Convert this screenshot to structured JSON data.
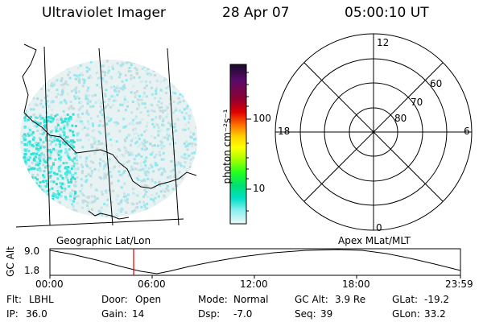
{
  "header": {
    "instrument": "Ultraviolet Imager",
    "date": "28 Apr 07",
    "time": "05:00:10 UT"
  },
  "colorbar": {
    "unit_label": "photon cm⁻²s⁻¹",
    "ticks": [
      "100",
      "10"
    ],
    "colors": [
      "#1a0a2a",
      "#3a0a5a",
      "#800080",
      "#a00000",
      "#e00000",
      "#ff6000",
      "#ffb000",
      "#ffff00",
      "#b0ff00",
      "#40ff00",
      "#00e060",
      "#00e0c0",
      "#90f0f0",
      "#e8f8f8"
    ]
  },
  "polar_plot": {
    "mlt_labels": {
      "top": "12",
      "left": "18",
      "right": "6",
      "bottom": "0"
    },
    "lat_labels": [
      "60",
      "70",
      "80"
    ]
  },
  "timeline": {
    "left_title": "Geographic Lat/Lon",
    "right_title": "Apex MLat/MLT",
    "axis_label": "GC Alt",
    "y_ticks": [
      "9.0",
      "1.8"
    ],
    "x_ticks": [
      "00:00",
      "06:00",
      "12:00",
      "18:00",
      "23:59"
    ],
    "marker_color": "#e00000"
  },
  "info": {
    "row1": [
      {
        "label": "Flt:",
        "value": "LBHL"
      },
      {
        "label": "Door:",
        "value": "Open"
      },
      {
        "label": "Mode:",
        "value": "Normal"
      },
      {
        "label": "GC Alt:",
        "value": "3.9 Re"
      },
      {
        "label": "GLat:",
        "value": "-19.2"
      }
    ],
    "row2": [
      {
        "label": "IP:",
        "value": "36.0"
      },
      {
        "label": "Gain:",
        "value": "14"
      },
      {
        "label": "Dsp:",
        "value": "-7.0"
      },
      {
        "label": "Seq:",
        "value": "39"
      },
      {
        "label": "GLon:",
        "value": "33.2"
      }
    ]
  }
}
